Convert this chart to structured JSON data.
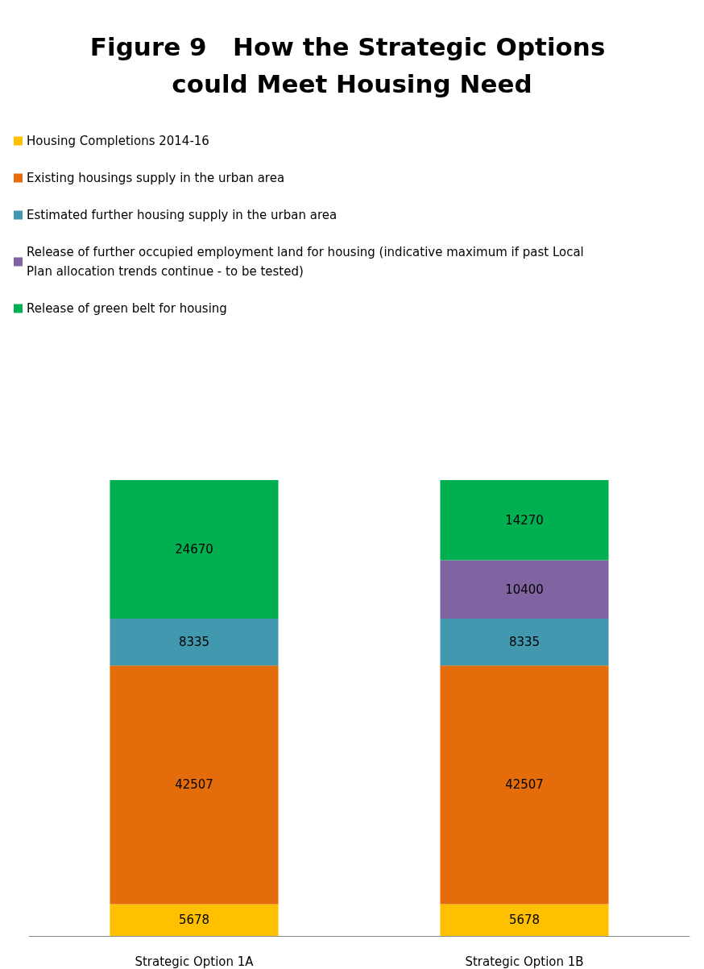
{
  "chart_data": {
    "type": "bar",
    "title": "Figure 9   How the Strategic Options could Meet Housing Need",
    "categories": [
      "Strategic Option 1A",
      "Strategic Option 1B"
    ],
    "stacked": true,
    "data_labels": true,
    "legend": "top left",
    "tick_labels": "x",
    "series": [
      {
        "name": "Housing Completions 2014-16",
        "color": "#ffc000",
        "values": [
          5678,
          5678
        ]
      },
      {
        "name": "Existing housings supply in the urban area",
        "color": "#e46c0a",
        "values": [
          42507,
          42507
        ]
      },
      {
        "name": "Estimated further housing supply in the urban area",
        "color": "#4198af",
        "values": [
          8335,
          8335
        ]
      },
      {
        "name": "Release of further occupied employment land for housing (indicative maximum if past Local Plan allocation trends continue - to be tested)",
        "color": "#8064a2",
        "values": [
          null,
          10400
        ]
      },
      {
        "name": "Release of green belt for housing",
        "color": "#00b050",
        "values": [
          24670,
          14270
        ]
      }
    ]
  }
}
